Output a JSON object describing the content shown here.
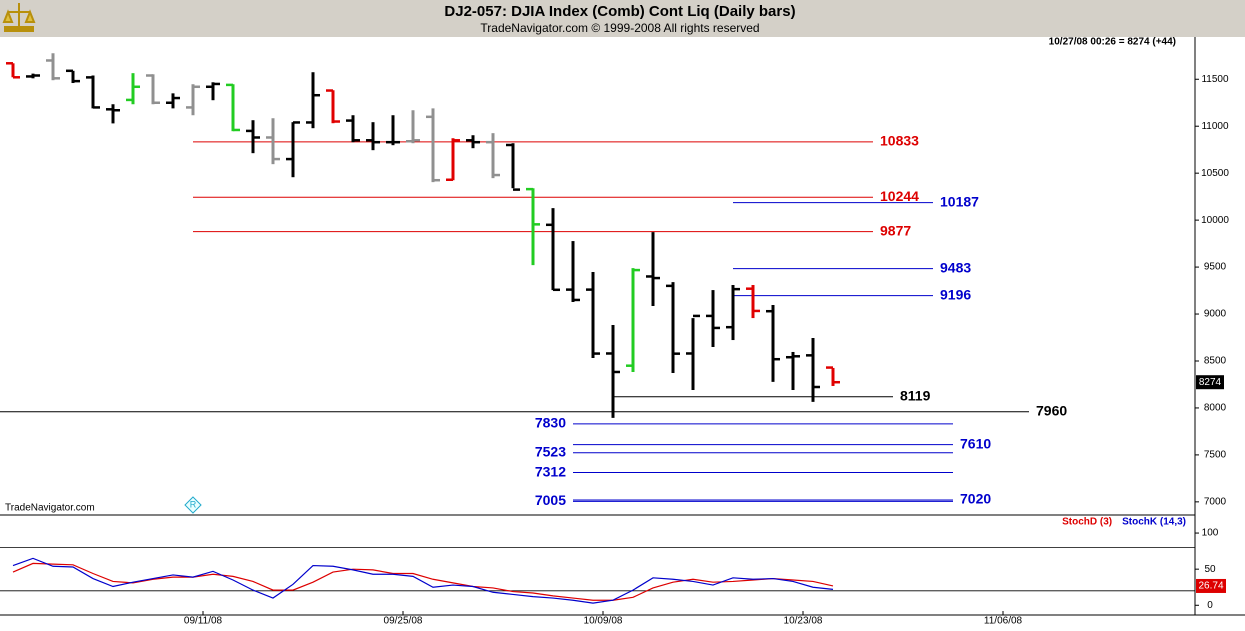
{
  "header": {
    "title": "DJ2-057:  DJIA Index (Comb) Cont Liq  (Daily bars)",
    "subtitle": "TradeNavigator.com © 1999-2008 All rights reserved",
    "status": "10/27/08 00:26 = 8274 (+44)",
    "watermark": "TradeNavigator.com"
  },
  "chart_data": [
    {
      "type": "ohlc",
      "x": [
        0,
        1,
        2,
        3,
        4,
        5,
        6,
        7,
        8,
        9,
        10,
        11,
        12,
        13,
        14,
        15,
        16,
        17,
        18,
        19,
        20,
        21,
        22,
        23,
        24,
        25,
        26,
        27,
        28,
        29,
        30,
        31,
        32,
        33,
        34,
        35,
        36,
        37,
        38,
        39,
        40,
        41
      ],
      "open": [
        11670,
        11530,
        11700,
        11590,
        11520,
        11180,
        11280,
        11540,
        11250,
        11200,
        11420,
        11440,
        10950,
        10880,
        10650,
        11040,
        11380,
        11060,
        10850,
        10830,
        10840,
        11100,
        10430,
        10850,
        10830,
        10800,
        10330,
        9950,
        9260,
        9260,
        8580,
        8450,
        9400,
        9300,
        8580,
        8980,
        8860,
        9270,
        9030,
        8540,
        8560,
        8430
      ],
      "high": [
        11670,
        11560,
        11777,
        11590,
        11540,
        11234,
        11565,
        11553,
        11350,
        11447,
        11468,
        11447,
        11064,
        11085,
        11043,
        11575,
        11383,
        11117,
        11043,
        11117,
        11170,
        11190,
        10872,
        10904,
        10926,
        10819,
        10340,
        10128,
        9777,
        9447,
        8883,
        9489,
        9872,
        9340,
        8957,
        9255,
        9309,
        9309,
        9096,
        8596,
        8745,
        8426
      ],
      "low": [
        11521,
        11510,
        11490,
        11460,
        11190,
        11030,
        11234,
        11234,
        11190,
        11117,
        11277,
        10947,
        10713,
        10596,
        10457,
        10979,
        11032,
        10830,
        10745,
        10798,
        10819,
        10404,
        10425,
        10766,
        10447,
        10340,
        9521,
        9255,
        9128,
        8532,
        7894,
        8383,
        9085,
        8372,
        8191,
        8649,
        8723,
        8957,
        8277,
        8191,
        8064,
        8234
      ],
      "close": [
        11521,
        11540,
        11510,
        11480,
        11200,
        11170,
        11420,
        11250,
        11300,
        11420,
        11450,
        10960,
        10880,
        10650,
        11040,
        11330,
        11050,
        10850,
        10830,
        10830,
        10850,
        10425,
        10850,
        10830,
        10480,
        10325,
        9955,
        9258,
        9150,
        8579,
        8383,
        9468,
        9383,
        8578,
        8980,
        8852,
        9265,
        9033,
        8519,
        8550,
        8223,
        8274
      ],
      "colors": [
        "#e00000",
        "#000000",
        "#909090",
        "#000000",
        "#000000",
        "#000000",
        "#22cc22",
        "#909090",
        "#000000",
        "#909090",
        "#000000",
        "#22cc22",
        "#000000",
        "#909090",
        "#000000",
        "#000000",
        "#e00000",
        "#000000",
        "#000000",
        "#000000",
        "#909090",
        "#909090",
        "#e00000",
        "#000000",
        "#909090",
        "#000000",
        "#22cc22",
        "#000000",
        "#000000",
        "#000000",
        "#000000",
        "#22cc22",
        "#000000",
        "#000000",
        "#000000",
        "#000000",
        "#000000",
        "#e00000",
        "#000000",
        "#000000",
        "#000000",
        "#e00000"
      ],
      "xlim": [
        -0.65,
        59.1
      ],
      "ylim": [
        6860,
        11950
      ],
      "yticks": [
        7000,
        7500,
        8000,
        8500,
        9000,
        9500,
        10000,
        10500,
        11000,
        11500
      ],
      "levels": [
        {
          "value": 10833,
          "color": "#dd0000",
          "x": [
            9,
            43
          ],
          "label_side": "right"
        },
        {
          "value": 10244,
          "color": "#dd0000",
          "x": [
            9,
            43
          ],
          "label_side": "right"
        },
        {
          "value": 9877,
          "color": "#dd0000",
          "x": [
            9,
            43
          ],
          "label_side": "right"
        },
        {
          "value": 10187,
          "color": "#0000cc",
          "x": [
            36,
            46
          ],
          "label_side": "right"
        },
        {
          "value": 9483,
          "color": "#0000cc",
          "x": [
            36,
            46
          ],
          "label_side": "right"
        },
        {
          "value": 9196,
          "color": "#0000cc",
          "x": [
            36,
            46
          ],
          "label_side": "right"
        },
        {
          "value": 8119,
          "color": "#000000",
          "x": [
            30,
            44
          ],
          "label_side": "right"
        },
        {
          "value": 7960,
          "color": "#000000",
          "x": [
            -0.65,
            50.8
          ],
          "label_side": "right"
        },
        {
          "value": 7830,
          "color": "#0000cc",
          "x": [
            28,
            47
          ],
          "label_side": "left"
        },
        {
          "value": 7610,
          "color": "#0000cc",
          "x": [
            28,
            47
          ],
          "label_side": "right"
        },
        {
          "value": 7523,
          "color": "#0000cc",
          "x": [
            28,
            47
          ],
          "label_side": "left"
        },
        {
          "value": 7312,
          "color": "#0000cc",
          "x": [
            28,
            47
          ],
          "label_side": "left"
        },
        {
          "value": 7020,
          "color": "#0000cc",
          "x": [
            28,
            47
          ],
          "label_side": "right"
        },
        {
          "value": 7005,
          "color": "#0000cc",
          "x": [
            28,
            47
          ],
          "label_side": "left"
        }
      ]
    },
    {
      "type": "line",
      "x": [
        0,
        1,
        2,
        3,
        4,
        5,
        6,
        7,
        8,
        9,
        10,
        11,
        12,
        13,
        14,
        15,
        16,
        17,
        18,
        19,
        20,
        21,
        22,
        23,
        24,
        25,
        26,
        27,
        28,
        29,
        30,
        31,
        32,
        33,
        34,
        35,
        36,
        37,
        38,
        39,
        40,
        41
      ],
      "series": [
        {
          "name": "StochD (3)",
          "color": "#dd0000",
          "values": [
            46,
            58,
            57,
            56,
            44,
            33,
            31,
            36,
            39,
            39,
            43,
            40,
            33,
            21,
            21,
            32,
            46,
            50,
            49,
            44,
            44,
            36,
            31,
            26,
            24,
            19,
            17,
            13,
            10,
            7,
            7,
            11,
            24,
            32,
            36,
            32,
            33,
            35,
            37,
            35,
            33,
            26.74
          ]
        },
        {
          "name": "StochK (14,3)",
          "color": "#0000cc",
          "values": [
            55,
            65,
            54,
            53,
            37,
            26,
            32,
            37,
            42,
            39,
            47,
            35,
            21,
            10,
            29,
            55,
            54,
            49,
            43,
            43,
            40,
            25,
            28,
            26,
            18,
            15,
            12,
            10,
            7,
            3,
            7,
            21,
            38,
            36,
            33,
            28,
            38,
            36,
            37,
            33,
            25,
            22
          ]
        }
      ],
      "xlim": [
        -0.65,
        59.1
      ],
      "xticks": [
        {
          "value": 9,
          "label": "09/11/08"
        },
        {
          "value": 19,
          "label": "09/25/08"
        },
        {
          "value": 29,
          "label": "10/09/08"
        },
        {
          "value": 39,
          "label": "10/23/08"
        },
        {
          "value": 49,
          "label": "11/06/08"
        }
      ],
      "ylim": [
        -19,
        125
      ],
      "yticks": [
        0,
        50,
        100
      ],
      "levels": [
        20,
        80
      ]
    }
  ]
}
